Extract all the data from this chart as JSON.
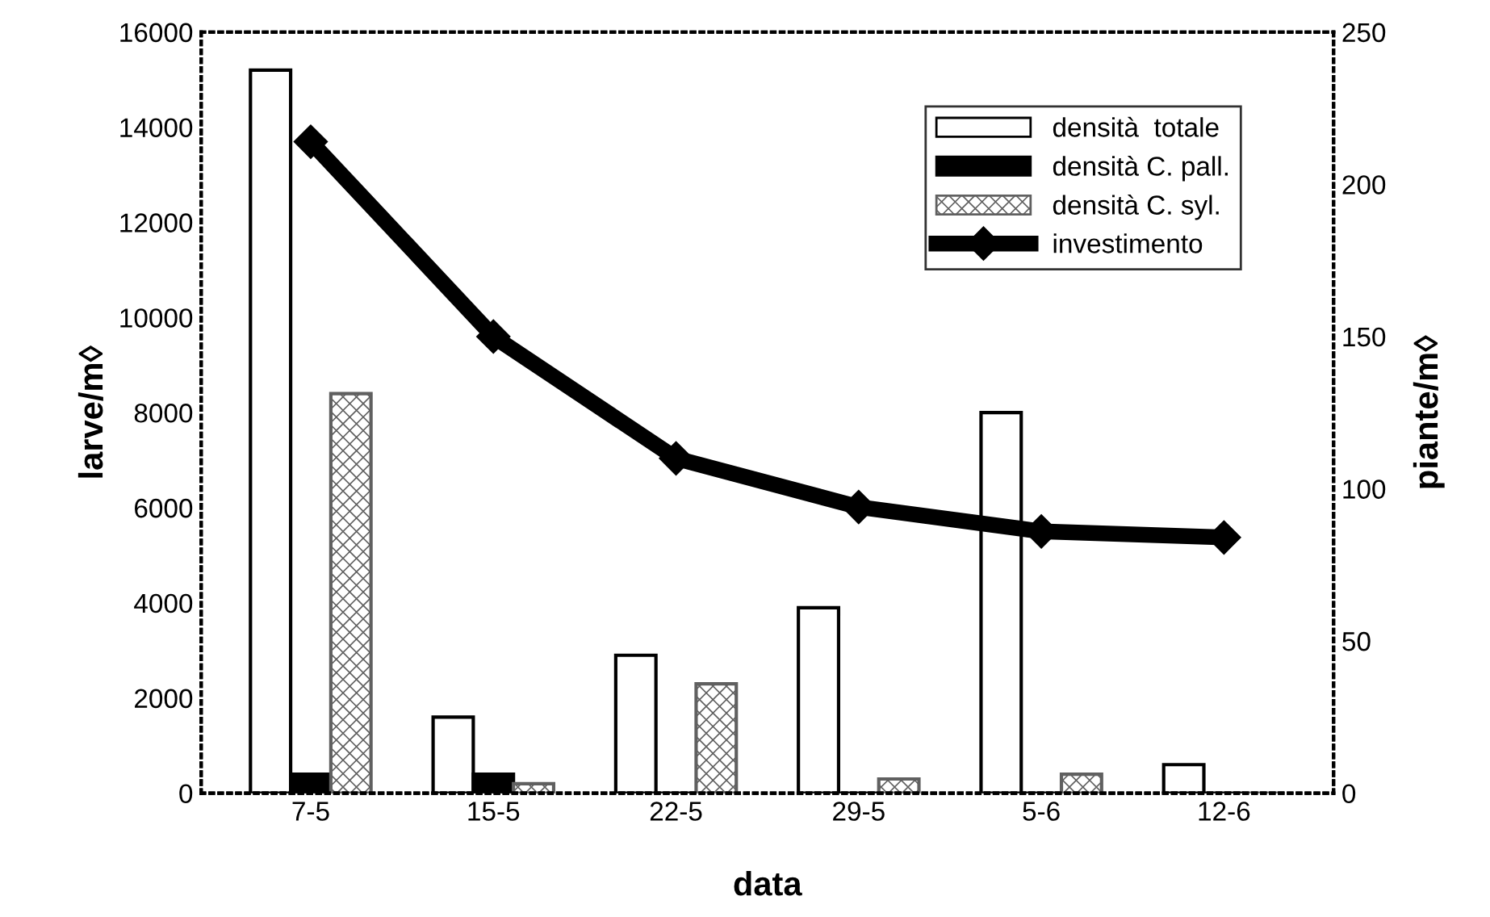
{
  "chart_data": {
    "type": "bar",
    "xlabel": "data",
    "ylabel": "larve/m◊",
    "y2label": "piante/m◊",
    "categories": [
      "7-5",
      "15-5",
      "22-5",
      "29-5",
      "5-6",
      "12-6"
    ],
    "series": [
      {
        "name": "densità  totale",
        "color": "#ffffff",
        "values": [
          15200,
          1600,
          2900,
          3900,
          8000,
          600
        ]
      },
      {
        "name": "densità C. pall.",
        "color": "#000000",
        "values": [
          400,
          400,
          0,
          0,
          0,
          0
        ]
      },
      {
        "name": "densità C. syl.",
        "color": "#606060",
        "values": [
          8400,
          200,
          2300,
          300,
          400,
          0
        ]
      },
      {
        "name": "investimento",
        "type": "line",
        "axis": "y2",
        "color": "#000000",
        "marker": "diamond",
        "values": [
          214,
          150,
          110,
          94,
          86,
          84
        ]
      }
    ],
    "ylim": [
      0,
      16000
    ],
    "yticks": [
      0,
      2000,
      4000,
      6000,
      8000,
      10000,
      12000,
      14000,
      16000
    ],
    "y2lim": [
      0,
      250
    ],
    "y2ticks": [
      0,
      50,
      100,
      150,
      200,
      250
    ],
    "grid": false,
    "legend": "top right"
  }
}
